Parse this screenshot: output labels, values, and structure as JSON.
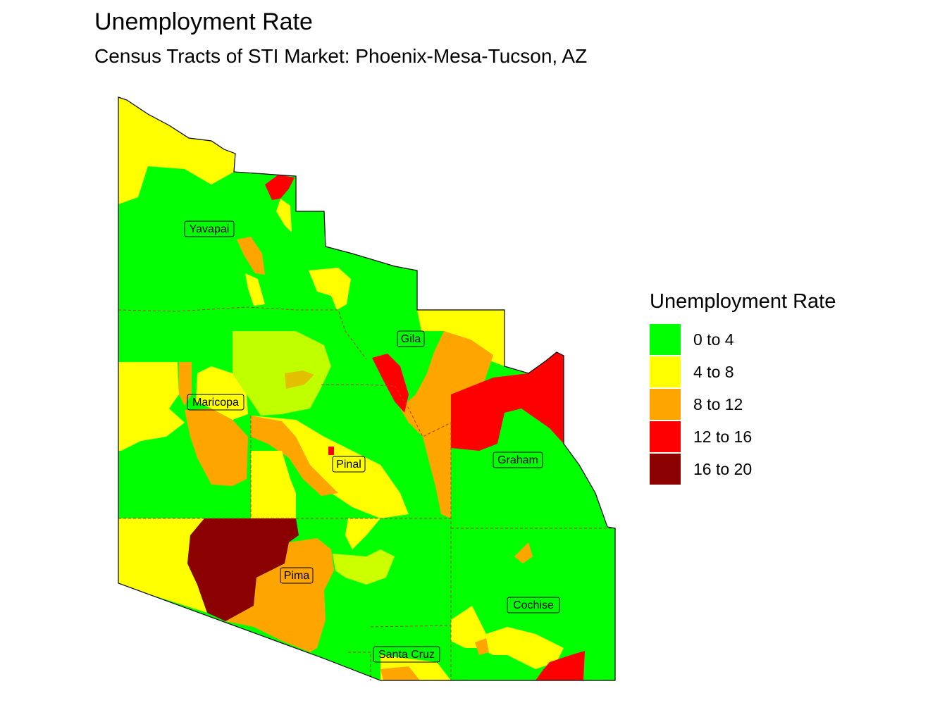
{
  "title": "Unemployment Rate",
  "subtitle": "Census Tracts of STI Market: Phoenix-Mesa-Tucson, AZ",
  "legend": {
    "title": "Unemployment Rate",
    "items": [
      {
        "label": "0 to 4",
        "color": "#00ff00"
      },
      {
        "label": "4 to 8",
        "color": "#ffff00"
      },
      {
        "label": "8 to 12",
        "color": "#ffa500"
      },
      {
        "label": "12 to 16",
        "color": "#ff0000"
      },
      {
        "label": "16 to 20",
        "color": "#8b0000"
      }
    ]
  },
  "counties": [
    {
      "name": "Yavapai"
    },
    {
      "name": "Gila"
    },
    {
      "name": "Maricopa"
    },
    {
      "name": "Pinal"
    },
    {
      "name": "Graham"
    },
    {
      "name": "Pima"
    },
    {
      "name": "Cochise"
    },
    {
      "name": "Santa Cruz"
    }
  ]
}
